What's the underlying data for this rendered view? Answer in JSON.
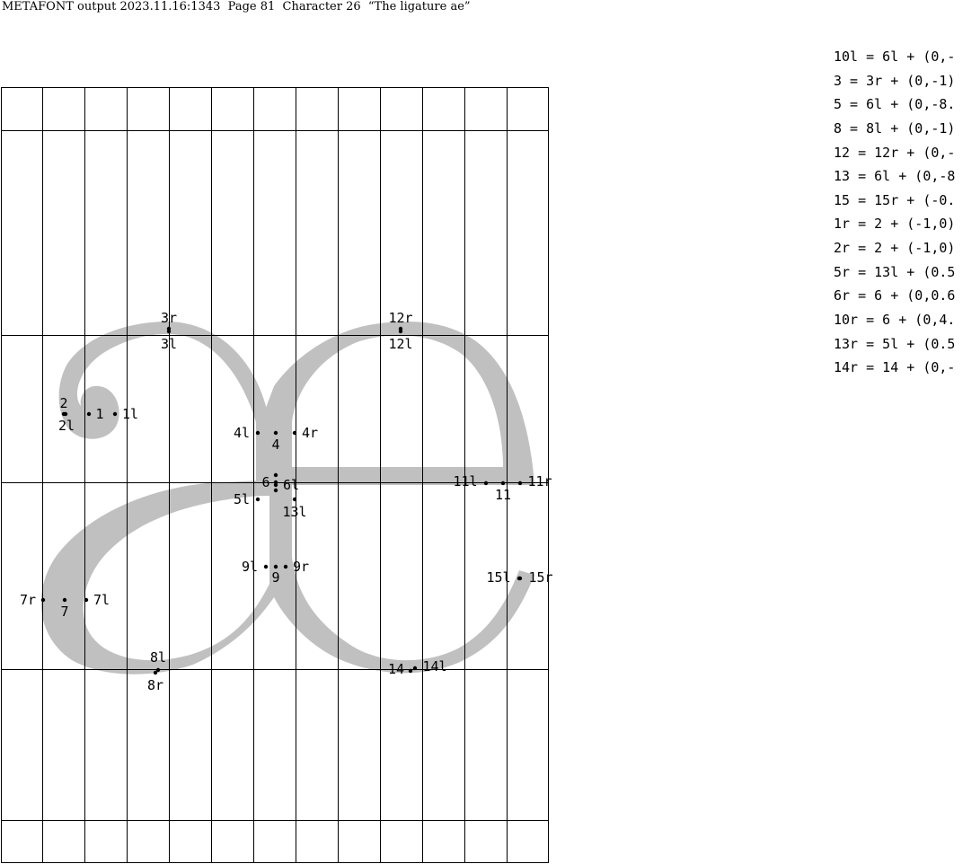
{
  "header": {
    "program": "METAFONT",
    "text": "output 2023.11.16:1343  Page 81  Character 26  “The ligature ae”"
  },
  "equations": [
    "10l = 6l + (0,-",
    "3 = 3r + (0,-1)",
    "5 = 6l + (0,-8.",
    "8 = 8l + (0,-1)",
    "12 = 12r + (0,-",
    "13 = 6l + (0,-8",
    "15 = 15r + (-0.",
    "1r = 2 + (-1,0)",
    "2r = 2 + (-1,0)",
    "5r = 13l + (0.5",
    "6r = 6 + (0,0.6",
    "10r = 6 + (0,4.",
    "13r = 5l + (0.5",
    "14r = 14 + (0,-"
  ],
  "points": [
    {
      "label": "3r",
      "ldx": 0,
      "ldy": -12
    },
    {
      "label": "3l",
      "ldx": 0,
      "ldy": 14
    },
    {
      "label": "12r",
      "ldx": 0,
      "ldy": -12
    },
    {
      "label": "12l",
      "ldx": 0,
      "ldy": 14
    },
    {
      "label": "2",
      "ldx": 0,
      "ldy": -12
    },
    {
      "label": "2l",
      "ldx": 1,
      "ldy": 13
    },
    {
      "label": "1",
      "ldx": 12,
      "ldy": 0
    },
    {
      "label": "1l",
      "ldx": 17,
      "ldy": 0
    },
    {
      "label": "4l",
      "ldx": -18,
      "ldy": 0
    },
    {
      "label": "4",
      "ldx": 0,
      "ldy": 13
    },
    {
      "label": "4r",
      "ldx": 17,
      "ldy": 0
    },
    {
      "label": "6",
      "ldx": -11,
      "ldy": 0
    },
    {
      "label": "6l",
      "ldx": 17,
      "ldy": 0
    },
    {
      "label": "5l",
      "ldx": -18,
      "ldy": 0
    },
    {
      "label": "13l",
      "ldx": 0,
      "ldy": 14
    },
    {
      "label": "11l",
      "ldx": -23,
      "ldy": -2
    },
    {
      "label": "11",
      "ldx": 0,
      "ldy": 13
    },
    {
      "label": "11r",
      "ldx": 22,
      "ldy": -2
    },
    {
      "label": "9l",
      "ldx": -18,
      "ldy": 0
    },
    {
      "label": "9",
      "ldx": 0,
      "ldy": 12
    },
    {
      "label": "9r",
      "ldx": 17,
      "ldy": 0
    },
    {
      "label": "15l",
      "ldx": -23,
      "ldy": -1
    },
    {
      "label": "15r",
      "ldx": 23,
      "ldy": -1
    },
    {
      "label": "7r",
      "ldx": -17,
      "ldy": 0
    },
    {
      "label": "7",
      "ldx": 0,
      "ldy": 13
    },
    {
      "label": "7l",
      "ldx": 17,
      "ldy": 0
    },
    {
      "label": "8l",
      "ldx": 0,
      "ldy": -14
    },
    {
      "label": "8r",
      "ldx": 0,
      "ldy": 14
    },
    {
      "label": "14",
      "ldx": -16,
      "ldy": -2
    },
    {
      "label": "14l",
      "ldx": 22,
      "ldy": -2
    }
  ]
}
